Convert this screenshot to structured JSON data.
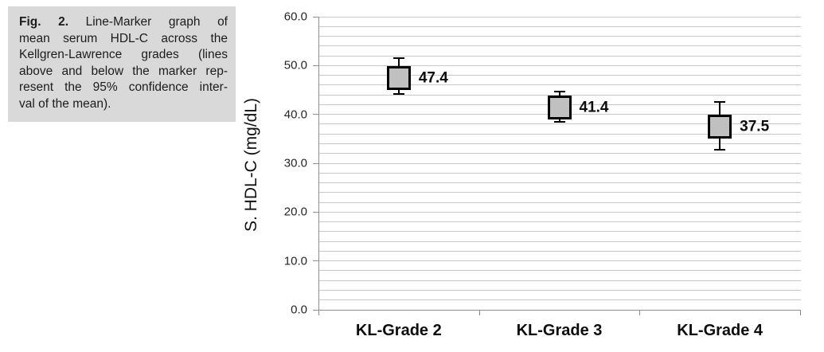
{
  "caption": {
    "fig_label": "Fig. 2.",
    "line0_rest": "Line-Marker graph of",
    "lines": [
      "mean serum HDL-C across the",
      "Kellgren-Lawrence grades (lines",
      "above and below the marker rep-",
      "resent the 95% confidence inter-",
      "val of the mean)."
    ]
  },
  "chart_data": {
    "type": "line",
    "subtype": "line-marker-with-ci",
    "title": "",
    "xlabel": "",
    "ylabel": "S. HDL-C (mg/dL)",
    "categories": [
      "KL-Grade 2",
      "KL-Grade 3",
      "KL-Grade 4"
    ],
    "values": [
      47.4,
      41.4,
      37.5
    ],
    "value_labels": [
      "47.4",
      "41.4",
      "37.5"
    ],
    "ci_low": [
      44.2,
      38.5,
      32.8
    ],
    "ci_high": [
      51.5,
      44.7,
      42.6
    ],
    "ylim": [
      0,
      60
    ],
    "ytick_labels": [
      "0.0",
      "10.0",
      "20.0",
      "30.0",
      "40.0",
      "50.0",
      "60.0"
    ],
    "major_tick_step": 10,
    "minor_grid_step": 2,
    "grid": "horizontal-minor",
    "legend": "none"
  },
  "colors": {
    "caption_bg": "#d9d9d9",
    "grid": "#c9c9c9",
    "axis": "#8e8e8e",
    "marker_fill": "#c0c0c0",
    "marker_border": "#000000",
    "error_bar": "#000000",
    "text": "#1c1c1c"
  }
}
